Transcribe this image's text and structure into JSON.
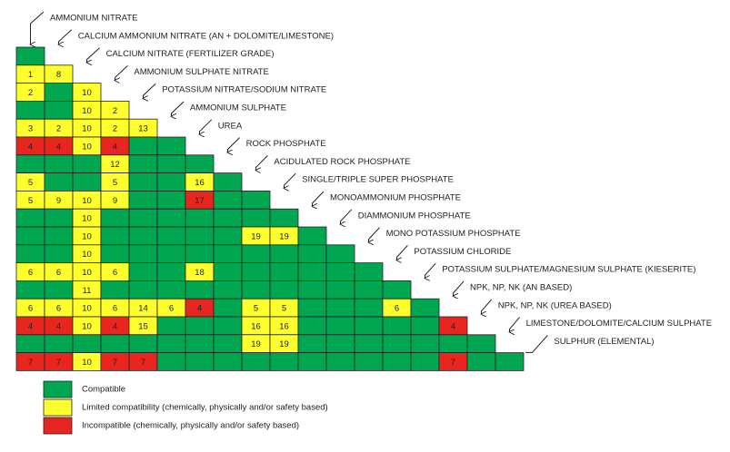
{
  "products": [
    "AMMONIUM NITRATE",
    "CALCIUM AMMONIUM NITRATE (AN + DOLOMITE/LIMESTONE)",
    "CALCIUM NITRATE (FERTILIZER GRADE)",
    "AMMONIUM SULPHATE NITRATE",
    "POTASSIUM NITRATE/SODIUM NITRATE",
    "AMMONIUM SULPHATE",
    "UREA",
    "ROCK PHOSPHATE",
    "ACIDULATED ROCK PHOSPHATE",
    "SINGLE/TRIPLE SUPER PHOSPHATE",
    "MONOAMMONIUM PHOSPHATE",
    "DIAMMONIUM PHOSPHATE",
    "MONO POTASSIUM PHOSPHATE",
    "POTASSIUM CHLORIDE",
    "POTASSIUM SULPHATE/MAGNESIUM SULPHATE (KIESERITE)",
    "NPK, NP, NK (AN BASED)",
    "NPK, NP, NK (UREA BASED)",
    "LIMESTONE/DOLOMITE/CALCIUM SULPHATE",
    "SULPHUR (ELEMENTAL)"
  ],
  "legend": [
    {
      "color": "#00a650",
      "label": "Compatible"
    },
    {
      "color": "#ffff2e",
      "label": "Limited compatibility (chemically, physically and/or safety based)"
    },
    {
      "color": "#e8261f",
      "label": "Incompatible (chemically, physically and/or safety based)"
    }
  ],
  "matrix": [
    [
      0
    ],
    [
      {
        "key": 1,
        "text": 1
      },
      {
        "key": 1,
        "text": 8
      }
    ],
    [
      {
        "key": 1,
        "text": 2
      },
      0,
      {
        "key": 1,
        "text": 10
      }
    ],
    [
      0,
      0,
      {
        "key": 1,
        "text": 10
      },
      {
        "key": 1,
        "text": 2
      }
    ],
    [
      {
        "key": 1,
        "text": 3
      },
      {
        "key": 1,
        "text": 2
      },
      {
        "key": 1,
        "text": 10
      },
      {
        "key": 1,
        "text": 2
      },
      {
        "key": 1,
        "text": 13
      }
    ],
    [
      {
        "key": 2,
        "text": 4
      },
      {
        "key": 2,
        "text": 4
      },
      {
        "key": 1,
        "text": 10
      },
      {
        "key": 2,
        "text": 4
      },
      0,
      0
    ],
    [
      0,
      0,
      0,
      {
        "key": 1,
        "text": 12
      },
      0,
      0,
      0
    ],
    [
      {
        "key": 1,
        "text": 5
      },
      0,
      0,
      {
        "key": 1,
        "text": 5
      },
      0,
      0,
      {
        "key": 1,
        "text": 16
      },
      0
    ],
    [
      {
        "key": 1,
        "text": 5
      },
      {
        "key": 1,
        "text": 9
      },
      {
        "key": 1,
        "text": 10
      },
      {
        "key": 1,
        "text": 9
      },
      0,
      0,
      {
        "key": 2,
        "text": 17
      },
      0,
      0
    ],
    [
      0,
      0,
      {
        "key": 1,
        "text": 10
      },
      0,
      0,
      0,
      0,
      0,
      0,
      0
    ],
    [
      0,
      0,
      {
        "key": 1,
        "text": 10
      },
      0,
      0,
      0,
      0,
      0,
      {
        "key": 1,
        "text": 19
      },
      {
        "key": 1,
        "text": 19
      },
      0
    ],
    [
      0,
      0,
      {
        "key": 1,
        "text": 10
      },
      0,
      0,
      0,
      0,
      0,
      0,
      0,
      0,
      0
    ],
    [
      {
        "key": 1,
        "text": 6
      },
      {
        "key": 1,
        "text": 6
      },
      {
        "key": 1,
        "text": 10
      },
      {
        "key": 1,
        "text": 6
      },
      0,
      0,
      {
        "key": 1,
        "text": 18
      },
      0,
      0,
      0,
      0,
      0,
      0
    ],
    [
      0,
      0,
      {
        "key": 1,
        "text": 11
      },
      0,
      0,
      0,
      0,
      0,
      0,
      0,
      0,
      0,
      0,
      0
    ],
    [
      {
        "key": 1,
        "text": 6
      },
      {
        "key": 1,
        "text": 6
      },
      {
        "key": 1,
        "text": 10
      },
      {
        "key": 1,
        "text": 6
      },
      {
        "key": 1,
        "text": 14
      },
      {
        "key": 1,
        "text": 6
      },
      {
        "key": 2,
        "text": 4
      },
      0,
      {
        "key": 1,
        "text": 5
      },
      {
        "key": 1,
        "text": 5
      },
      0,
      0,
      0,
      {
        "key": 1,
        "text": 6
      },
      0
    ],
    [
      {
        "key": 2,
        "text": 4
      },
      {
        "key": 2,
        "text": 4
      },
      {
        "key": 1,
        "text": 10
      },
      {
        "key": 2,
        "text": 4
      },
      {
        "key": 1,
        "text": 15
      },
      0,
      0,
      0,
      {
        "key": 1,
        "text": 16
      },
      {
        "key": 1,
        "text": 16
      },
      0,
      0,
      0,
      0,
      0,
      {
        "key": 2,
        "text": 4
      }
    ],
    [
      0,
      0,
      0,
      0,
      0,
      0,
      0,
      0,
      {
        "key": 1,
        "text": 19
      },
      {
        "key": 1,
        "text": 19
      },
      0,
      0,
      0,
      0,
      0,
      0,
      0
    ],
    [
      {
        "key": 2,
        "text": 7
      },
      {
        "key": 2,
        "text": 7
      },
      {
        "key": 1,
        "text": 10
      },
      {
        "key": 2,
        "text": 7
      },
      {
        "key": 2,
        "text": 7
      },
      0,
      0,
      0,
      0,
      0,
      0,
      0,
      0,
      0,
      0,
      {
        "key": 2,
        "text": 7
      },
      0,
      0
    ]
  ]
}
